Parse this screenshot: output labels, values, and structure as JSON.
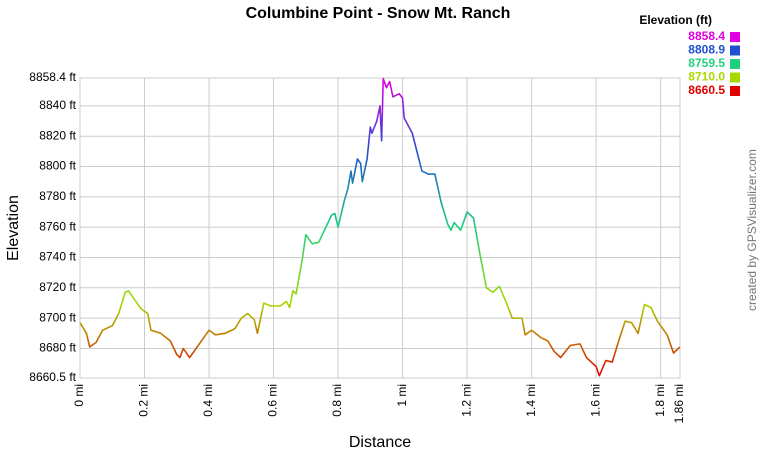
{
  "chart_data": {
    "type": "line",
    "title": "Columbine Point - Snow Mt. Ranch",
    "xlabel": "Distance",
    "ylabel": "Elevation",
    "credit": "created by GPSVisualizer.com",
    "legend": {
      "title": "Elevation (ft)",
      "items": [
        {
          "value": 8858.4,
          "label": "8858.4",
          "color": "#e000e0"
        },
        {
          "value": 8808.9,
          "label": "8808.9",
          "color": "#2050d0"
        },
        {
          "value": 8759.5,
          "label": "8759.5",
          "color": "#20d080"
        },
        {
          "value": 8710,
          "label": "8710.0",
          "color": "#a8d800"
        },
        {
          "value": 8660.5,
          "label": "8660.5",
          "color": "#e00000"
        }
      ]
    },
    "grid": true,
    "xlim": [
      0,
      1.86
    ],
    "ylim": [
      8660.5,
      8858.4
    ],
    "xticks": [
      {
        "value": 0,
        "label": "0 mi"
      },
      {
        "value": 0.2,
        "label": "0.2 mi"
      },
      {
        "value": 0.4,
        "label": "0.4 mi"
      },
      {
        "value": 0.6,
        "label": "0.6 mi"
      },
      {
        "value": 0.8,
        "label": "0.8 mi"
      },
      {
        "value": 1,
        "label": "1 mi"
      },
      {
        "value": 1.2,
        "label": "1.2 mi"
      },
      {
        "value": 1.4,
        "label": "1.4 mi"
      },
      {
        "value": 1.6,
        "label": "1.6 mi"
      },
      {
        "value": 1.8,
        "label": "1.8 mi"
      },
      {
        "value": 1.86,
        "label": "1.86 mi"
      }
    ],
    "yticks": [
      {
        "value": 8660.5,
        "label": "8660.5 ft"
      },
      {
        "value": 8680,
        "label": "8680 ft"
      },
      {
        "value": 8700,
        "label": "8700 ft"
      },
      {
        "value": 8720,
        "label": "8720 ft"
      },
      {
        "value": 8740,
        "label": "8740 ft"
      },
      {
        "value": 8760,
        "label": "8760 ft"
      },
      {
        "value": 8780,
        "label": "8780 ft"
      },
      {
        "value": 8800,
        "label": "8800 ft"
      },
      {
        "value": 8820,
        "label": "8820 ft"
      },
      {
        "value": 8840,
        "label": "8840 ft"
      },
      {
        "value": 8858.4,
        "label": "8858.4 ft"
      }
    ],
    "x": [
      0,
      0.02,
      0.03,
      0.05,
      0.07,
      0.1,
      0.12,
      0.14,
      0.15,
      0.17,
      0.19,
      0.21,
      0.22,
      0.25,
      0.28,
      0.3,
      0.31,
      0.32,
      0.34,
      0.36,
      0.38,
      0.4,
      0.42,
      0.45,
      0.48,
      0.5,
      0.52,
      0.54,
      0.55,
      0.57,
      0.59,
      0.62,
      0.64,
      0.65,
      0.66,
      0.67,
      0.69,
      0.7,
      0.72,
      0.74,
      0.76,
      0.78,
      0.79,
      0.8,
      0.82,
      0.83,
      0.84,
      0.845,
      0.86,
      0.87,
      0.875,
      0.89,
      0.9,
      0.905,
      0.92,
      0.93,
      0.935,
      0.94,
      0.95,
      0.96,
      0.97,
      0.99,
      1.0,
      1.005,
      1.03,
      1.06,
      1.08,
      1.1,
      1.12,
      1.14,
      1.15,
      1.16,
      1.18,
      1.2,
      1.22,
      1.24,
      1.26,
      1.28,
      1.3,
      1.32,
      1.34,
      1.37,
      1.38,
      1.4,
      1.43,
      1.45,
      1.47,
      1.49,
      1.52,
      1.55,
      1.57,
      1.6,
      1.61,
      1.63,
      1.65,
      1.67,
      1.69,
      1.71,
      1.73,
      1.75,
      1.77,
      1.79,
      1.82,
      1.84,
      1.86
    ],
    "values": [
      8697,
      8690,
      8681,
      8684,
      8692,
      8695,
      8703,
      8717,
      8718,
      8712,
      8706,
      8703,
      8692,
      8690,
      8685,
      8676,
      8674,
      8680,
      8674,
      8680,
      8686,
      8692,
      8689,
      8690,
      8693,
      8700,
      8703,
      8699,
      8690,
      8710,
      8708,
      8708,
      8711,
      8707,
      8718,
      8716,
      8740,
      8755,
      8749,
      8750,
      8759,
      8768,
      8769,
      8760,
      8778,
      8785,
      8797,
      8789,
      8805,
      8802,
      8790,
      8805,
      8826,
      8822,
      8830,
      8840,
      8817,
      8858,
      8852,
      8856,
      8846,
      8848,
      8845,
      8832,
      8822,
      8797,
      8795,
      8795,
      8776,
      8762,
      8758,
      8763,
      8758,
      8770,
      8766,
      8742,
      8720,
      8717,
      8721,
      8711,
      8700,
      8700,
      8689,
      8692,
      8687,
      8685,
      8678,
      8674,
      8682,
      8683,
      8674,
      8668,
      8662,
      8672,
      8671,
      8685,
      8698,
      8697,
      8690,
      8709,
      8707,
      8698,
      8689,
      8677,
      8681
    ]
  }
}
